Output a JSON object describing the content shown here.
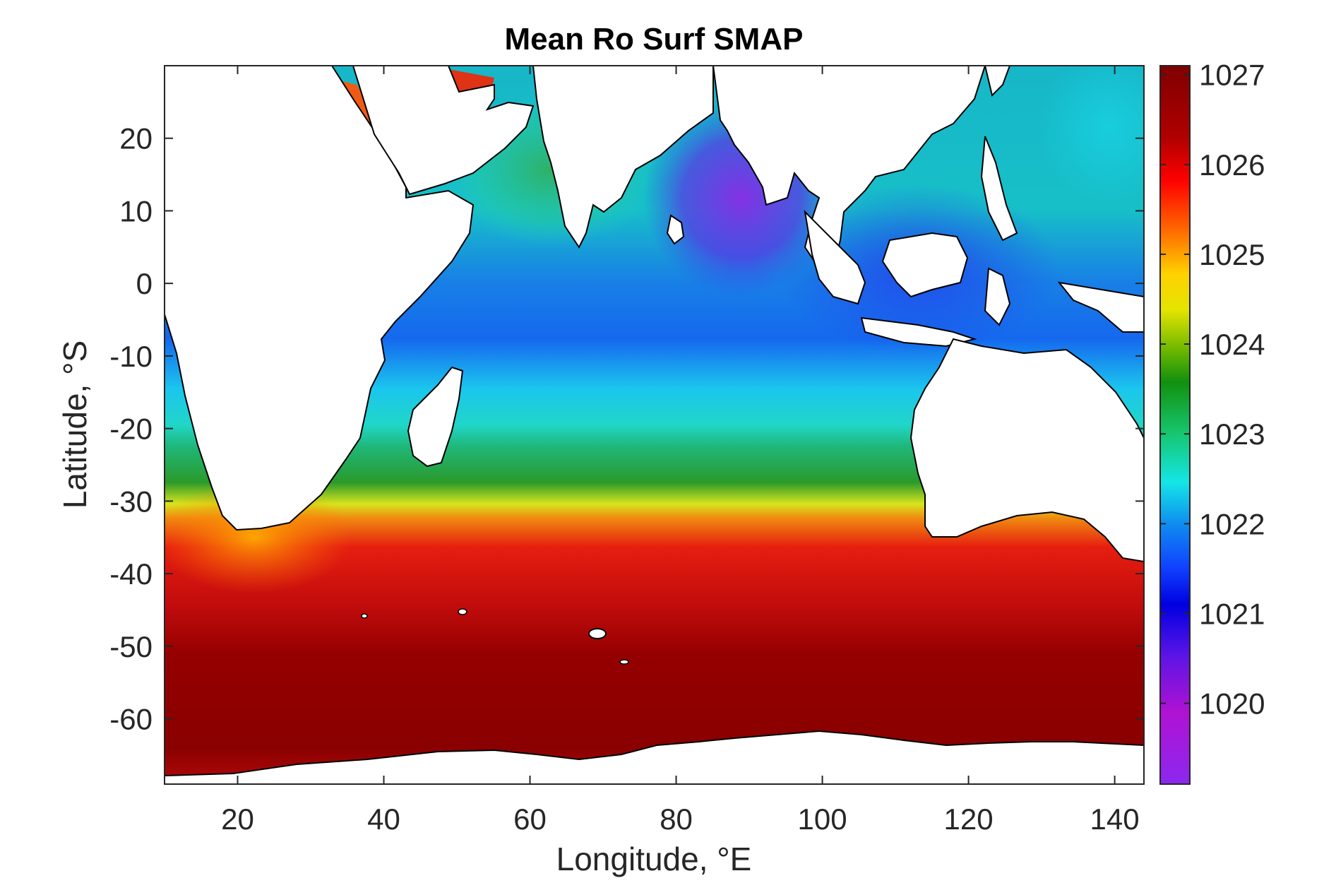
{
  "chart_data": {
    "type": "heatmap",
    "title": "Mean Ro Surf SMAP",
    "xlabel": "Longitude, °E",
    "ylabel": "Latitude, °S",
    "xlim": [
      10,
      144
    ],
    "ylim": [
      -69,
      30
    ],
    "xticks": [
      20,
      40,
      60,
      80,
      100,
      120,
      140
    ],
    "yticks": [
      20,
      10,
      0,
      -10,
      -20,
      -30,
      -40,
      -50,
      -60
    ],
    "colorbar": {
      "min": 1019.1,
      "max": 1027.1,
      "ticks": [
        1027,
        1026,
        1025,
        1024,
        1023,
        1022,
        1021,
        1020
      ],
      "colormap": "jet-like rainbow (purple→blue→cyan→green→yellow→red→dark red)"
    },
    "background_color": "#ffffff",
    "land_color": "#ffffff",
    "coastline_color": "#000000"
  }
}
